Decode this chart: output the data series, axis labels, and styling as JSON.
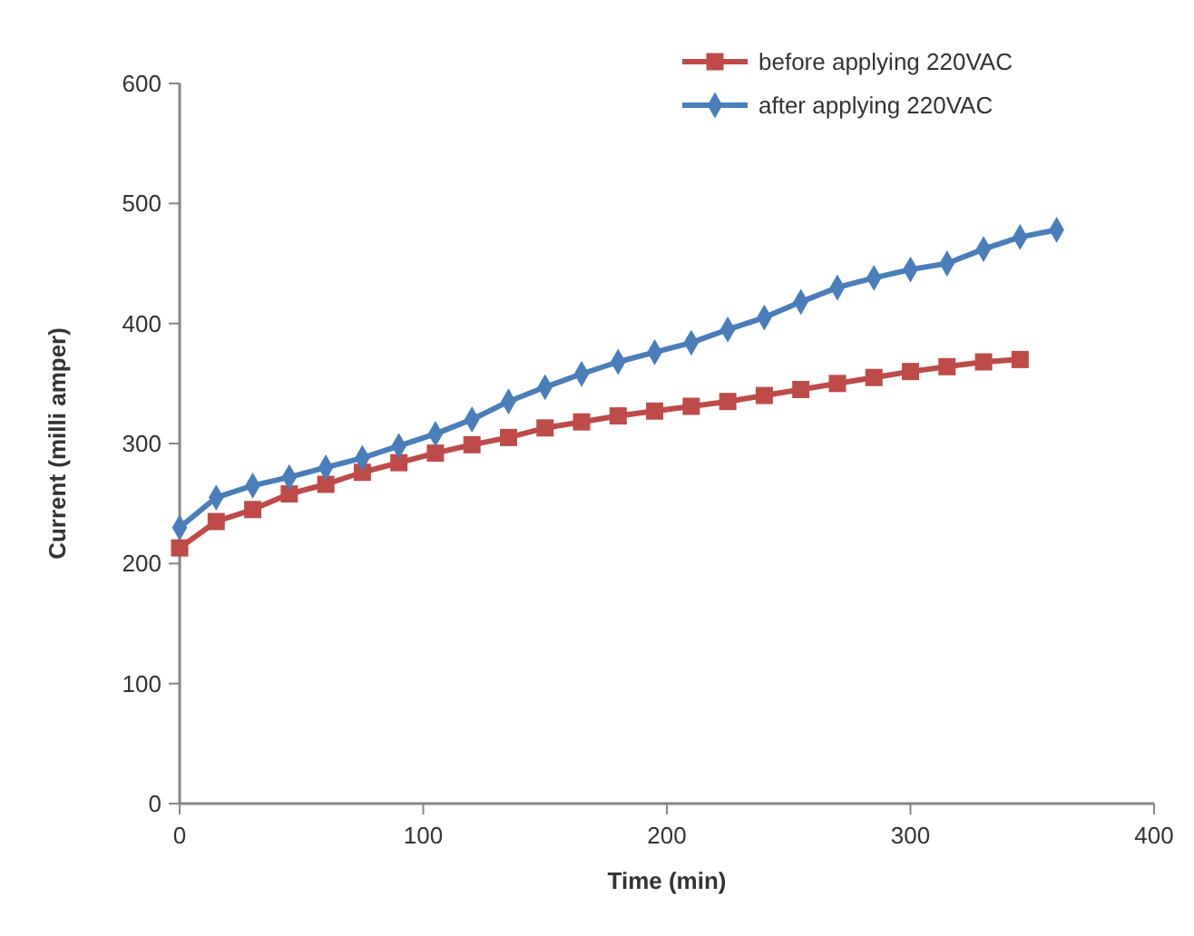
{
  "chart_data": {
    "type": "line",
    "xlabel": "Time (min)",
    "ylabel": "Current (milli amper)",
    "xlim": [
      0,
      400
    ],
    "xticks": [
      0,
      100,
      200,
      300,
      400
    ],
    "ylim": [
      0,
      600
    ],
    "yticks": [
      0,
      100,
      200,
      300,
      400,
      500,
      600
    ],
    "grid": false,
    "legend": "top right",
    "series": [
      {
        "name": "before applying 220VAC",
        "color": "#be4b48",
        "marker": "square",
        "x": [
          0,
          15,
          30,
          45,
          60,
          75,
          90,
          105,
          120,
          135,
          150,
          165,
          180,
          195,
          210,
          225,
          240,
          255,
          270,
          285,
          300,
          315,
          330,
          345
        ],
        "values": [
          213,
          235,
          245,
          258,
          266,
          276,
          284,
          292,
          299,
          305,
          313,
          318,
          323,
          327,
          331,
          335,
          340,
          345,
          350,
          355,
          360,
          364,
          368,
          370
        ]
      },
      {
        "name": "after applying 220VAC",
        "color": "#4a7ebb",
        "marker": "diamond",
        "x": [
          0,
          15,
          30,
          45,
          60,
          75,
          90,
          105,
          120,
          135,
          150,
          165,
          180,
          195,
          210,
          225,
          240,
          255,
          270,
          285,
          300,
          315,
          330,
          345,
          360
        ],
        "values": [
          230,
          255,
          265,
          272,
          280,
          288,
          298,
          308,
          320,
          335,
          347,
          358,
          368,
          376,
          384,
          395,
          405,
          418,
          430,
          438,
          445,
          450,
          462,
          472,
          478
        ]
      }
    ]
  }
}
